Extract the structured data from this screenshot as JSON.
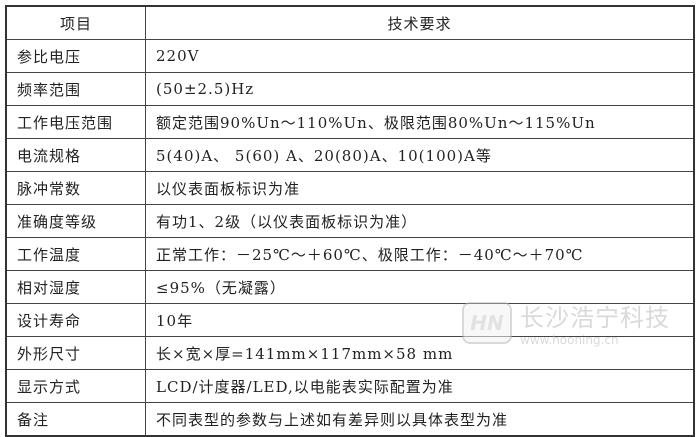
{
  "header": {
    "item": "项目",
    "requirement": "技术要求"
  },
  "rows": [
    {
      "item": "参比电压",
      "value": "220V"
    },
    {
      "item": "频率范围",
      "value": "(50±2.5)Hz"
    },
    {
      "item": "工作电压范围",
      "value": "额定范围90%Un～110%Un、极限范围80%Un～115%Un"
    },
    {
      "item": "电流规格",
      "value": "5(40)A、 5(60) A、20(80)A、10(100)A等"
    },
    {
      "item": "脉冲常数",
      "value": "以仪表面板标识为准"
    },
    {
      "item": "准确度等级",
      "value": "有功1、2级（以仪表面板标识为准）"
    },
    {
      "item": "工作温度",
      "value": "正常工作：－25℃～＋60℃、极限工作：－40℃～＋70℃"
    },
    {
      "item": "相对湿度",
      "value": "≤95%（无凝露）"
    },
    {
      "item": "设计寿命",
      "value": "10年"
    },
    {
      "item": "外形尺寸",
      "value": "长×宽×厚=141mm×117mm×58 mm"
    },
    {
      "item": "显示方式",
      "value": "LCD/计度器/LED,以电能表实际配置为准"
    },
    {
      "item": "备注",
      "value": "不同表型的参数与上述如有差异则以具体表型为准"
    }
  ],
  "watermark": {
    "logo": "HN",
    "company": "长沙浩宁科技",
    "url": "www.hooning.cn"
  }
}
